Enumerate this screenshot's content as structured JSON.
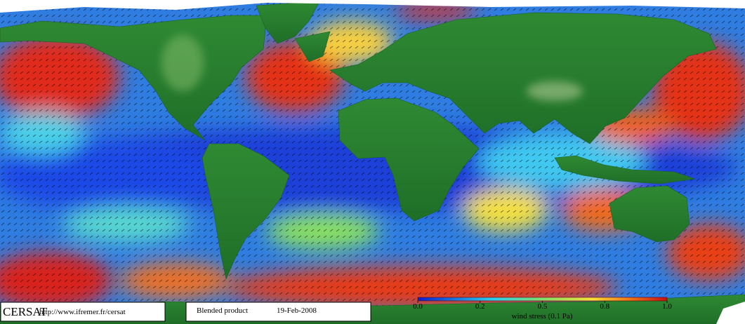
{
  "footer": {
    "logo": "CERSAT",
    "url": "http://www.ifremer.fr/cersat",
    "product": "Blended product",
    "date": "19-Feb-2008"
  },
  "colorbar": {
    "label": "wind stress (0.1 Pa)",
    "ticks": [
      {
        "value": 0,
        "label": "0.0"
      },
      0.2,
      0.5,
      0.8,
      {
        "value": 1,
        "label": "1.0"
      }
    ]
  }
}
